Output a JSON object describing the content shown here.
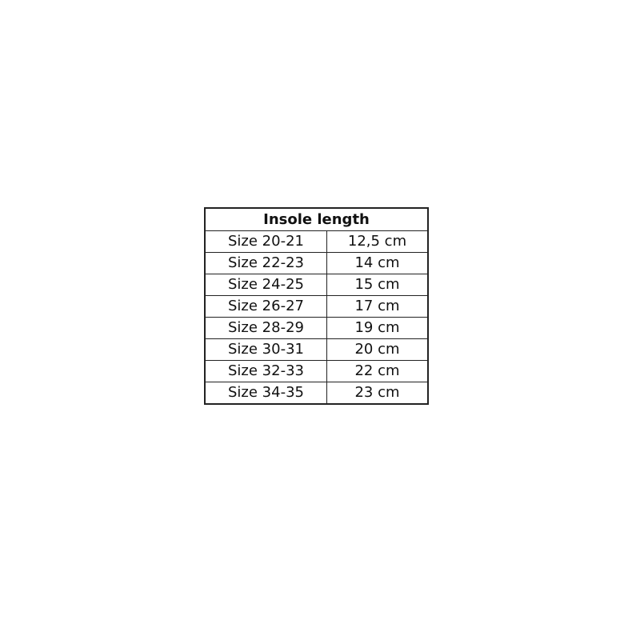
{
  "table": {
    "title": "Insole length",
    "rows": [
      {
        "size": "Size 20-21",
        "length": "12,5 cm"
      },
      {
        "size": "Size 22-23",
        "length": "14 cm"
      },
      {
        "size": "Size 24-25",
        "length": "15 cm"
      },
      {
        "size": "Size 26-27",
        "length": "17 cm"
      },
      {
        "size": "Size 28-29",
        "length": "19 cm"
      },
      {
        "size": "Size 30-31",
        "length": "20 cm"
      },
      {
        "size": "Size 32-33",
        "length": "22 cm"
      },
      {
        "size": "Size 34-35",
        "length": "23 cm"
      }
    ]
  }
}
